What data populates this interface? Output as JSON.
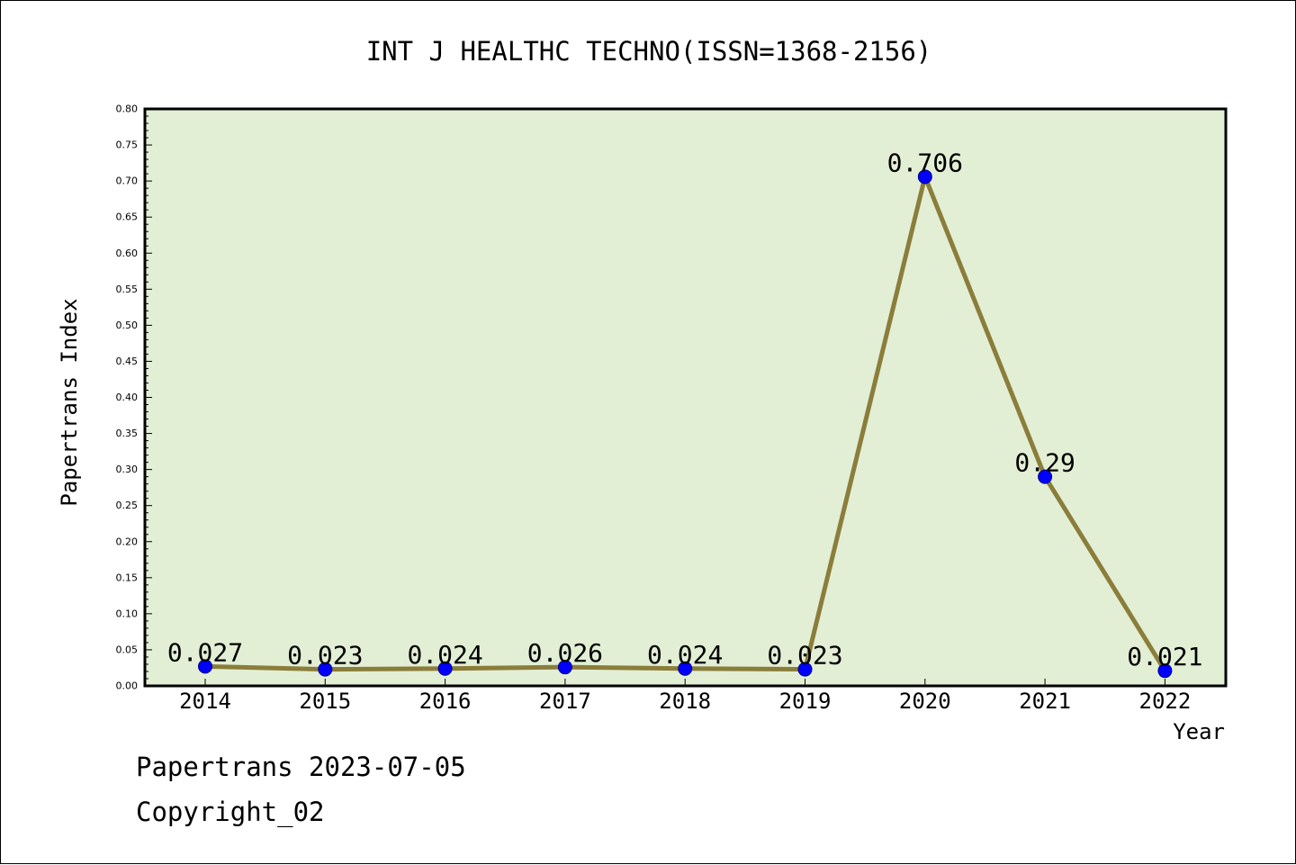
{
  "chart_data": {
    "type": "line",
    "title": "INT J HEALTHC TECHNO(ISSN=1368-2156)",
    "xlabel": "Year",
    "ylabel": "Papertrans Index",
    "x": [
      "2014",
      "2015",
      "2016",
      "2017",
      "2018",
      "2019",
      "2020",
      "2021",
      "2022"
    ],
    "series": [
      {
        "values": [
          0.027,
          0.023,
          0.024,
          0.026,
          0.024,
          0.023,
          0.706,
          0.29,
          0.021
        ],
        "labels": [
          "0.027",
          "0.023",
          "0.024",
          "0.026",
          "0.024",
          "0.023",
          "0.706",
          "0.29",
          "0.021"
        ]
      }
    ],
    "ylim": [
      0,
      0.8
    ],
    "yticks": [
      "0.00",
      "0.05",
      "0.10",
      "0.15",
      "0.20",
      "0.25",
      "0.30",
      "0.35",
      "0.40",
      "0.45",
      "0.50",
      "0.55",
      "0.60",
      "0.65",
      "0.70",
      "0.75",
      "0.80"
    ],
    "grid": false,
    "legend": "none",
    "colors": {
      "plot_background": "#e2efd5",
      "line": "#8b7d3a",
      "marker": "#0000ff",
      "marker_edge": "#000080"
    }
  },
  "footer": {
    "line1": "Papertrans 2023-07-05",
    "line2": "Copyright_02"
  }
}
